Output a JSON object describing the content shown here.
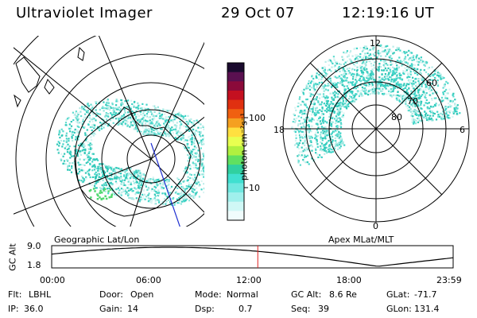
{
  "header": {
    "title": "Ultraviolet Imager",
    "date": "29 Oct 07",
    "time": "12:19:16 UT"
  },
  "panels": {
    "left_label": "Geographic Lat/Lon",
    "right_label": "Apex MLat/MLT"
  },
  "colorbar": {
    "unit_label": "photon cm⁻²s⁻¹",
    "ticks": [
      "100",
      "10"
    ],
    "colors": [
      "#1a0a2e",
      "#5a1050",
      "#8b0a3a",
      "#c41020",
      "#e03010",
      "#f06010",
      "#f5a020",
      "#ffe040",
      "#e8ff50",
      "#b0f040",
      "#60e060",
      "#30d0a0",
      "#40e0d0",
      "#70e8e0",
      "#a0f0ec",
      "#d0f8f6",
      "#f0fcfc"
    ]
  },
  "polar": {
    "mlt_labels": {
      "top": "12",
      "left": "18",
      "right": "6",
      "bottom": "0"
    },
    "mlat_labels": [
      "60",
      "70",
      "80"
    ]
  },
  "altitude_plot": {
    "axis_label": "GC Alt",
    "y_ticks": [
      "9.0",
      "1.8"
    ],
    "x_ticks": [
      "00:00",
      "06:00",
      "12:00",
      "18:00",
      "23:59"
    ],
    "current_time_fraction": 0.5134
  },
  "info": {
    "flt_label": "Flt:",
    "flt_value": "LBHL",
    "door_label": "Door:",
    "door_value": "Open",
    "mode_label": "Mode:",
    "mode_value": "Normal",
    "gcalt_label": "GC Alt:",
    "gcalt_value": "8.6 Re",
    "glat_label": "GLat:",
    "glat_value": "-71.7",
    "ip_label": "IP:",
    "ip_value": "36.0",
    "gain_label": "Gain:",
    "gain_value": "14",
    "dsp_label": "Dsp:",
    "dsp_value": "0.7",
    "seq_label": "Seq:",
    "seq_value": "39",
    "glon_label": "GLon:",
    "glon_value": "131.4"
  }
}
